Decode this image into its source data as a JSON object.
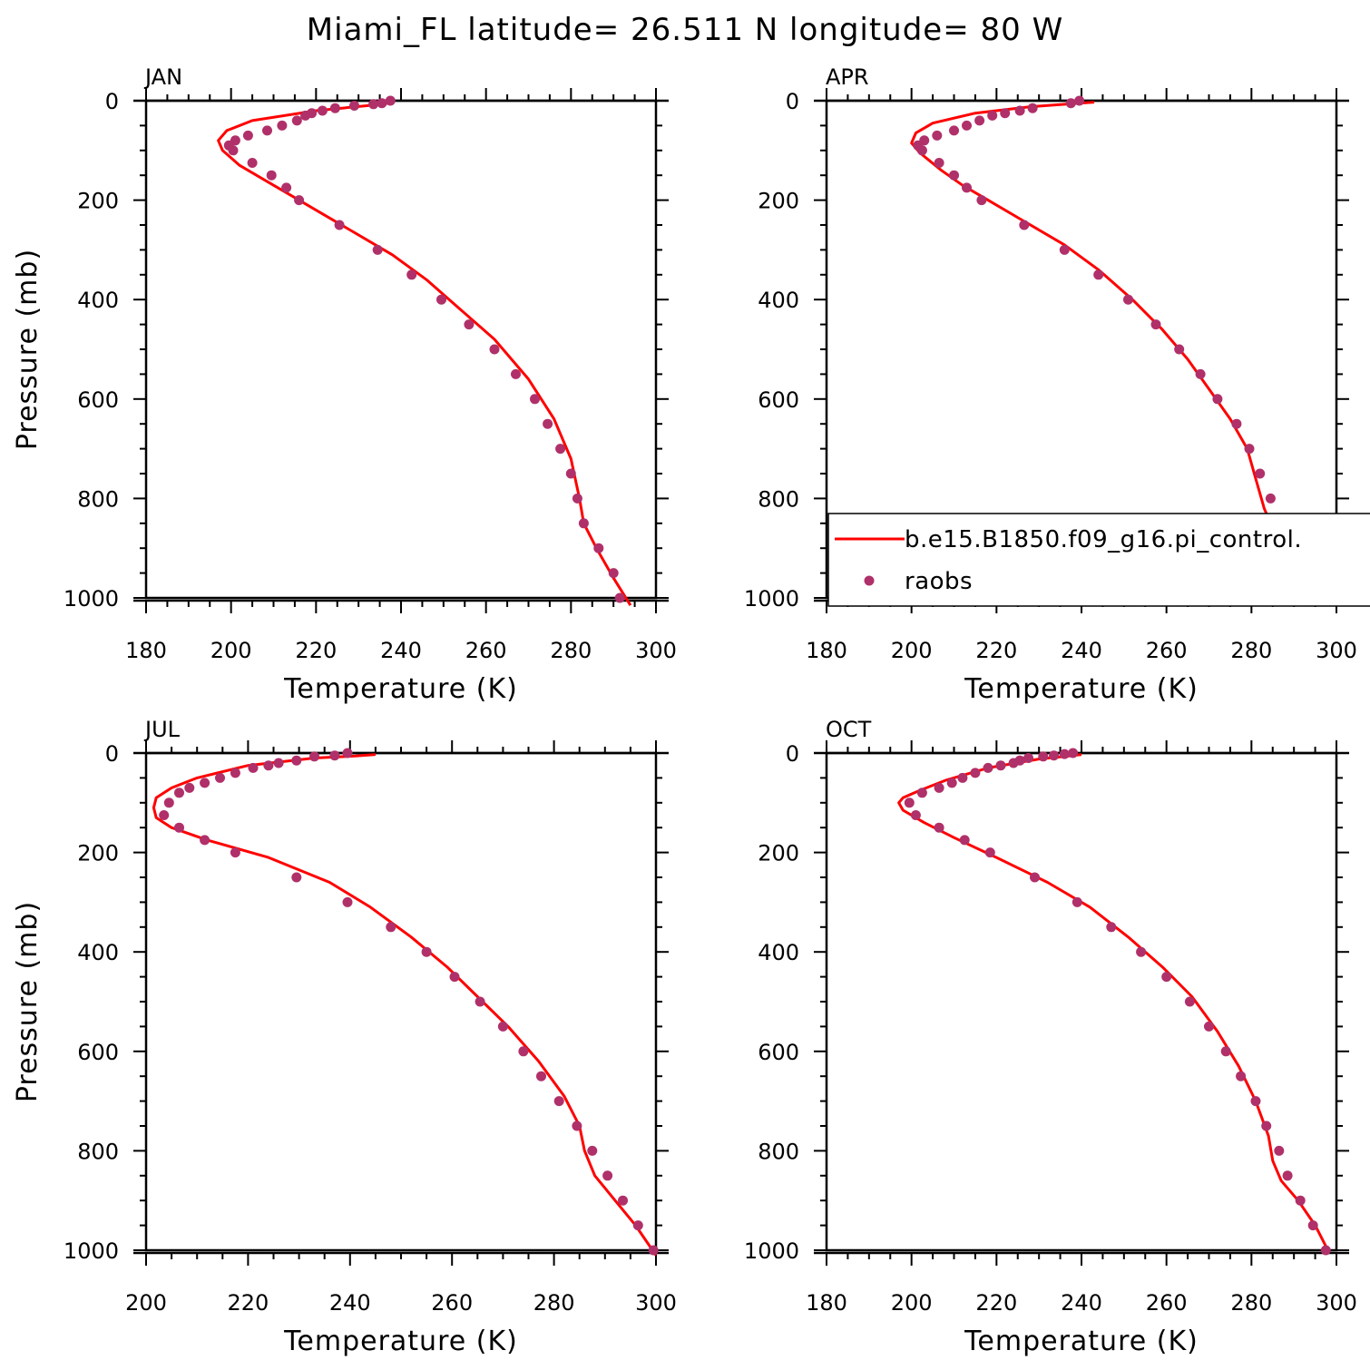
{
  "figure": {
    "title": "Miami_FL  latitude= 26.511 N longitude= 80 W"
  },
  "colors": {
    "model": "#ff0000",
    "obs": "#b0306a"
  },
  "legend": {
    "model_label": "b.e15.B1850.f09_g16.pi_control.",
    "obs_label": "raobs"
  },
  "chart_data": [
    {
      "type": "line",
      "panel_title": "JAN",
      "xlabel": "Temperature (K)",
      "ylabel": "Pressure (mb)",
      "xlim": [
        180,
        300
      ],
      "ylim": [
        1000,
        0
      ],
      "y_inverted": true,
      "xticks": [
        180,
        200,
        220,
        240,
        260,
        280,
        300
      ],
      "yticks": [
        0,
        200,
        400,
        600,
        800,
        1000
      ],
      "series": [
        {
          "name": "b.e15.B1850.f09_g16.pi_control.",
          "style": "line",
          "x": [
            237,
            232,
            220,
            205,
            199,
            197,
            198,
            202,
            208,
            214,
            220,
            228,
            238,
            246,
            254,
            262,
            270,
            276,
            280,
            282,
            283,
            286,
            290,
            294
          ],
          "y": [
            5,
            10,
            20,
            40,
            60,
            80,
            100,
            130,
            160,
            190,
            220,
            260,
            310,
            360,
            420,
            480,
            560,
            640,
            720,
            800,
            850,
            900,
            960,
            1015
          ]
        },
        {
          "name": "raobs",
          "style": "markers",
          "x": [
            237.5,
            235.5,
            233.5,
            229,
            224.5,
            221.5,
            219,
            217.5,
            215.5,
            212,
            208.5,
            204,
            201,
            199.5,
            200.5,
            205,
            209.5,
            213,
            216,
            225.5,
            234.5,
            242.5,
            249.5,
            256,
            262,
            267,
            271.5,
            274.5,
            277.5,
            280,
            281.5,
            283,
            286.5,
            290,
            291.5
          ],
          "y": [
            0,
            5,
            7,
            10,
            15,
            20,
            25,
            30,
            40,
            50,
            60,
            70,
            80,
            90,
            100,
            125,
            150,
            175,
            200,
            250,
            300,
            350,
            400,
            450,
            500,
            550,
            600,
            650,
            700,
            750,
            800,
            850,
            900,
            950,
            1000
          ]
        }
      ]
    },
    {
      "type": "line",
      "panel_title": "APR",
      "xlabel": "Temperature (K)",
      "ylabel": "",
      "xlim": [
        180,
        300
      ],
      "ylim": [
        1000,
        0
      ],
      "y_inverted": true,
      "xticks": [
        180,
        200,
        220,
        240,
        260,
        280,
        300
      ],
      "yticks": [
        0,
        200,
        400,
        600,
        800,
        1000
      ],
      "series": [
        {
          "name": "b.e15.B1850.f09_g16.pi_control.",
          "style": "line",
          "x": [
            243,
            238,
            228,
            215,
            205,
            201,
            200,
            202,
            207,
            212,
            218,
            226,
            236,
            244,
            252,
            259,
            265,
            270,
            275,
            279,
            281,
            283,
            285,
            287,
            290,
            296
          ],
          "y": [
            3,
            6,
            12,
            25,
            45,
            65,
            85,
            105,
            140,
            170,
            200,
            240,
            290,
            340,
            400,
            460,
            520,
            580,
            640,
            700,
            760,
            820,
            860,
            900,
            950,
            1010
          ]
        },
        {
          "name": "raobs",
          "style": "markers",
          "x": [
            239.5,
            237.5,
            228.5,
            225.5,
            222,
            219,
            216,
            213,
            210,
            206,
            203,
            201.5,
            202.5,
            206.5,
            210,
            213,
            216.5,
            226.5,
            236,
            244,
            251,
            257.5,
            263,
            268,
            272,
            276.5,
            279.5,
            282,
            284.5,
            286.5,
            289,
            292,
            295
          ],
          "y": [
            0,
            5,
            15,
            20,
            25,
            30,
            40,
            50,
            60,
            70,
            80,
            90,
            100,
            125,
            150,
            175,
            200,
            250,
            300,
            350,
            400,
            450,
            500,
            550,
            600,
            650,
            700,
            750,
            800,
            850,
            900,
            950,
            1000
          ]
        }
      ]
    },
    {
      "type": "line",
      "panel_title": "JUL",
      "xlabel": "Temperature (K)",
      "ylabel": "Pressure (mb)",
      "xlim": [
        200,
        300
      ],
      "ylim": [
        1000,
        0
      ],
      "y_inverted": true,
      "xticks": [
        200,
        220,
        240,
        260,
        280,
        300
      ],
      "yticks": [
        0,
        200,
        400,
        600,
        800,
        1000
      ],
      "series": [
        {
          "name": "b.e15.B1850.f09_g16.pi_control.",
          "style": "line",
          "x": [
            245,
            241,
            233,
            220,
            210,
            205,
            202,
            201.5,
            202,
            205,
            212,
            224,
            236,
            244,
            252,
            259,
            265,
            271,
            277,
            282,
            285,
            286,
            288,
            292,
            296,
            300
          ],
          "y": [
            3,
            6,
            10,
            25,
            50,
            70,
            90,
            110,
            130,
            150,
            175,
            210,
            260,
            310,
            370,
            430,
            490,
            550,
            620,
            690,
            750,
            800,
            850,
            900,
            950,
            1010
          ]
        },
        {
          "name": "raobs",
          "style": "markers",
          "x": [
            239.5,
            237,
            233,
            229.5,
            226,
            224,
            221,
            217.5,
            214.5,
            211.5,
            208.5,
            206.5,
            204.5,
            203.5,
            206.5,
            211.5,
            217.5,
            229.5,
            239.5,
            248,
            255,
            260.5,
            265.5,
            270,
            274,
            277.5,
            281,
            284.5,
            287.5,
            290.5,
            293.5,
            296.5,
            299.5
          ],
          "y": [
            0,
            5,
            7,
            15,
            20,
            25,
            30,
            40,
            50,
            60,
            70,
            80,
            100,
            125,
            150,
            175,
            200,
            250,
            300,
            350,
            400,
            450,
            500,
            550,
            600,
            650,
            700,
            750,
            800,
            850,
            900,
            950,
            1000
          ]
        }
      ]
    },
    {
      "type": "line",
      "panel_title": "OCT",
      "xlabel": "Temperature (K)",
      "ylabel": "",
      "xlim": [
        180,
        300
      ],
      "ylim": [
        1000,
        0
      ],
      "y_inverted": true,
      "xticks": [
        180,
        200,
        220,
        240,
        260,
        280,
        300
      ],
      "yticks": [
        0,
        200,
        400,
        600,
        800,
        1000
      ],
      "series": [
        {
          "name": "b.e15.B1850.f09_g16.pi_control.",
          "style": "line",
          "x": [
            240,
            237,
            230,
            218,
            208,
            202,
            198,
            197,
            198,
            203,
            210,
            220,
            232,
            242,
            251,
            259,
            266,
            272,
            277,
            281,
            284,
            285,
            287,
            291,
            295,
            298
          ],
          "y": [
            3,
            6,
            12,
            30,
            55,
            75,
            90,
            100,
            115,
            140,
            170,
            210,
            260,
            310,
            370,
            430,
            490,
            560,
            630,
            700,
            770,
            820,
            860,
            900,
            950,
            1000
          ]
        },
        {
          "name": "raobs",
          "style": "markers",
          "x": [
            238,
            236,
            233.5,
            231,
            227.5,
            225.5,
            224,
            221,
            218,
            215,
            212,
            209.5,
            206.5,
            202.5,
            199.5,
            201,
            206.5,
            212.5,
            218.5,
            229,
            239,
            247,
            254,
            260,
            265.5,
            270,
            274,
            277.5,
            281,
            283.5,
            286.5,
            288.5,
            291.5,
            294.5,
            297.5
          ],
          "y": [
            0,
            2,
            5,
            7,
            10,
            15,
            20,
            25,
            30,
            40,
            50,
            60,
            70,
            80,
            100,
            125,
            150,
            175,
            200,
            250,
            300,
            350,
            400,
            450,
            500,
            550,
            600,
            650,
            700,
            750,
            800,
            850,
            900,
            950,
            1000
          ]
        }
      ]
    }
  ]
}
